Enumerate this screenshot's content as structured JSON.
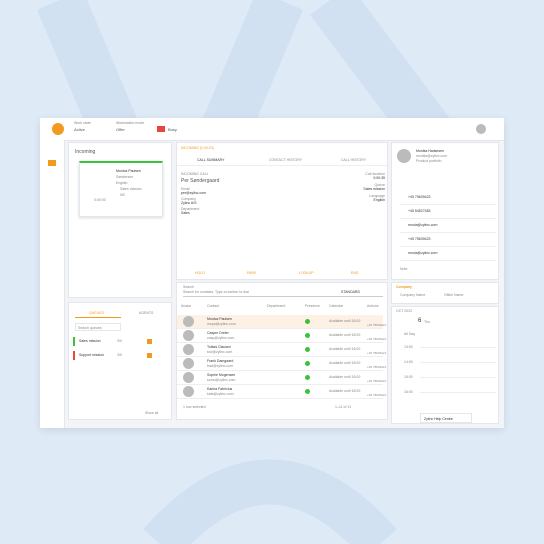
{
  "topbar": {
    "work_state_label": "Work state",
    "work_state": "Active",
    "mode_label": "Workstation mode",
    "mode": "Offer",
    "status": "Busy"
  },
  "incoming": {
    "title": "Incoming",
    "name": "Monica Paulsen",
    "subtitle": "Søndersen",
    "language": "English",
    "queue": "Sales mission",
    "tag": "NS",
    "timer": "0:00:00"
  },
  "queues": {
    "tabs": [
      "QUEUES",
      "AGENTS"
    ],
    "search": "Search queues",
    "rows": [
      {
        "name": "Sales mission",
        "count": "3/0",
        "color": "#3cc13b"
      },
      {
        "name": "Support mission",
        "count": "3/0",
        "color": "#e8453c"
      }
    ],
    "show_all": "Show all"
  },
  "call": {
    "badge": "INCOMING (0:00:23)",
    "tabs": [
      "CALL SUMMARY",
      "CONTACT HISTORY",
      "CALL HISTORY"
    ],
    "heading": "INCOMING CALL",
    "name": "Per Søndergaard",
    "fields": [
      [
        "Email",
        "per@zylinc.com"
      ],
      [
        "Company",
        "Zylinc A/S"
      ],
      [
        "Department",
        "Sales"
      ]
    ],
    "right": [
      [
        "Call duration",
        "0:00:35"
      ],
      [
        "Queue",
        "Sales mission"
      ],
      [
        "Language",
        "English"
      ]
    ],
    "buttons": [
      "HOLD",
      "PARK",
      "LOOKUP",
      "END"
    ]
  },
  "search": {
    "label": "Search",
    "placeholder": "Search for contacts. Type a number to dial",
    "mode": "STANDARD"
  },
  "table": {
    "headers": [
      "Avatar",
      "Contact",
      "Department",
      "Presence",
      "Calendar",
      "Actions"
    ],
    "rows": [
      [
        "Monica Paulsen",
        "mopa@zylinc.com",
        "Available until 18:00",
        "+45 78639421"
      ],
      [
        "Casper Dreier",
        "casp@zylinc.com",
        "Available until 18:00",
        "+45 78639421"
      ],
      [
        "Tobias Clausen",
        "tocl@zylinc.com",
        "Available until 18:00",
        "+45 78639421"
      ],
      [
        "Frank Damgaard",
        "frad@zylinc.com",
        "Available until 18:00",
        "+45 78639421"
      ],
      [
        "Sophie Mogensen",
        "somo@zylinc.com",
        "Available until 18:00",
        "+45 78639421"
      ],
      [
        "Karina Fabricius",
        "kafa@zylinc.com",
        "Available until 18:00",
        "+45 78639421"
      ]
    ],
    "selected": "1 row selected",
    "pages": "1–11 of 11"
  },
  "contact": {
    "name": "Monika Hadsesen",
    "email": "monika@zylinc.com",
    "role": "Product portfolio",
    "entries": [
      "+45 75639423",
      "+45 54527483",
      "monia@zylinc.com",
      "+45 75639423",
      "monia@zylinc.com"
    ],
    "note": "Note"
  },
  "company": {
    "title": "Company",
    "fields": [
      "Company Name",
      "Office Name"
    ]
  },
  "calendar": {
    "month": "OCT 2022",
    "day": "6",
    "weekday": "Thu",
    "all_day": "All Day",
    "hours": [
      "13:00",
      "14:00",
      "15:00",
      "16:00"
    ]
  },
  "help": "Zylinc Help Centre"
}
